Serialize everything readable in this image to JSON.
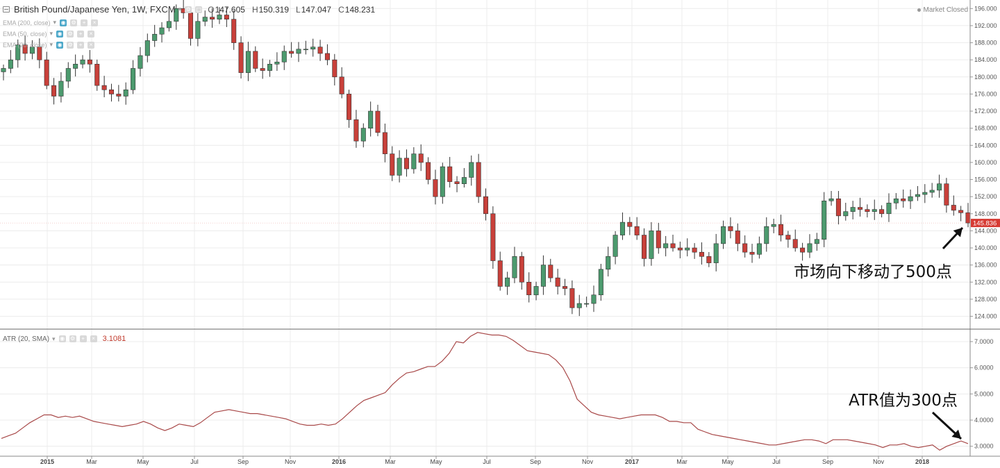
{
  "header": {
    "title": "British Pound/Japanese Yen, 1W, FXCM",
    "ohlc": [
      {
        "key": "O",
        "value": "147.605"
      },
      {
        "key": "H",
        "value": "150.319"
      },
      {
        "key": "L",
        "value": "147.047"
      },
      {
        "key": "C",
        "value": "148.231"
      }
    ],
    "indicators": [
      "EMA (200, close)",
      "EMA (50, close)",
      "EMA (20, close)"
    ],
    "market_status": "Market Closed"
  },
  "atr_legend": {
    "label": "ATR (20, SMA)",
    "value": "3.1081"
  },
  "annotations": {
    "price_move": "市场向下移动了500点",
    "atr_value": "ATR值为300点"
  },
  "colors": {
    "up": "#4c9a6e",
    "down": "#c8403a",
    "atr_line": "#a84848",
    "grid": "#ececec",
    "last_price_bg": "#d63a33"
  },
  "chart_data": [
    {
      "type": "candlestick",
      "title": "British Pound/Japanese Yen, 1W, FXCM",
      "y_axis_ticks": [
        "124.000",
        "128.000",
        "132.000",
        "136.000",
        "140.000",
        "144.000",
        "148.000",
        "152.000",
        "156.000",
        "160.000",
        "164.000",
        "168.000",
        "172.000",
        "176.000",
        "180.000",
        "184.000",
        "188.000",
        "192.000",
        "196.000"
      ],
      "ylim": [
        121,
        198
      ],
      "x_axis_ticks": [
        "2015",
        "Mar",
        "May",
        "Jul",
        "Sep",
        "Nov",
        "2016",
        "Mar",
        "May",
        "Jul",
        "Sep",
        "Nov",
        "2017",
        "Mar",
        "May",
        "Jul",
        "Sep",
        "Nov",
        "2018"
      ],
      "last_price_label": "145.836",
      "close_series": [
        182,
        184,
        187.5,
        185.5,
        187,
        184,
        178,
        175.5,
        179,
        182,
        183,
        184,
        183,
        178,
        177,
        176,
        175.5,
        177,
        182,
        185,
        188.5,
        190,
        191.5,
        193,
        196,
        195,
        189,
        193,
        194,
        193.5,
        194.5,
        193.5,
        188,
        181,
        186,
        182,
        181.5,
        183,
        183.5,
        186,
        185.5,
        186.5,
        186.5,
        187,
        185.5,
        184,
        180,
        176,
        170,
        165,
        168,
        172,
        167,
        162,
        157,
        161,
        158.5,
        162,
        160,
        156,
        152,
        159,
        155.5,
        155,
        156.5,
        160,
        152,
        148,
        137,
        131,
        133,
        138,
        132,
        129,
        131,
        136,
        133,
        131,
        130.5,
        126,
        127,
        127,
        129,
        135,
        138,
        143,
        146,
        145,
        143,
        137.5,
        144,
        140,
        141,
        140,
        139.5,
        140,
        139,
        138,
        136.5,
        141,
        145,
        144,
        141,
        139,
        138.5,
        141,
        145,
        145.5,
        143,
        142,
        140,
        139,
        141,
        142,
        151,
        151.5,
        147.5,
        148.5,
        149.5,
        149,
        148.5,
        149,
        148,
        150.5,
        151.5,
        151,
        152,
        152.5,
        153,
        153.5,
        155,
        150,
        148.8,
        148.23,
        145.836
      ]
    },
    {
      "type": "line",
      "title": "ATR (20, SMA)",
      "y_axis_ticks": [
        "3.0000",
        "4.0000",
        "5.0000",
        "6.0000",
        "7.0000"
      ],
      "ylim": [
        2.62,
        7.45
      ],
      "values": [
        3.3,
        3.4,
        3.5,
        3.7,
        3.9,
        4.05,
        4.2,
        4.2,
        4.1,
        4.15,
        4.1,
        4.15,
        4.05,
        3.95,
        3.9,
        3.85,
        3.8,
        3.75,
        3.8,
        3.85,
        3.95,
        3.85,
        3.7,
        3.6,
        3.7,
        3.85,
        3.8,
        3.75,
        3.9,
        4.1,
        4.3,
        4.35,
        4.4,
        4.35,
        4.3,
        4.25,
        4.25,
        4.2,
        4.15,
        4.1,
        4.05,
        3.95,
        3.85,
        3.8,
        3.8,
        3.85,
        3.8,
        3.85,
        4.05,
        4.3,
        4.55,
        4.75,
        4.85,
        4.95,
        5.05,
        5.35,
        5.6,
        5.8,
        5.85,
        5.95,
        6.05,
        6.05,
        6.25,
        6.55,
        7.0,
        6.95,
        7.2,
        7.35,
        7.3,
        7.25,
        7.25,
        7.2,
        7.05,
        6.85,
        6.65,
        6.6,
        6.55,
        6.5,
        6.3,
        6.0,
        5.5,
        4.8,
        4.55,
        4.3,
        4.2,
        4.15,
        4.1,
        4.05,
        4.1,
        4.15,
        4.2,
        4.2,
        4.2,
        4.1,
        3.95,
        3.95,
        3.9,
        3.9,
        3.65,
        3.55,
        3.45,
        3.4,
        3.35,
        3.3,
        3.25,
        3.2,
        3.15,
        3.1,
        3.05,
        3.05,
        3.1,
        3.15,
        3.2,
        3.25,
        3.25,
        3.2,
        3.1,
        3.25,
        3.25,
        3.25,
        3.2,
        3.15,
        3.1,
        3.05,
        2.95,
        3.05,
        3.05,
        3.1,
        3.0,
        2.95,
        3.0,
        3.05,
        2.85,
        3.0,
        3.1,
        3.2,
        3.1
      ]
    }
  ]
}
